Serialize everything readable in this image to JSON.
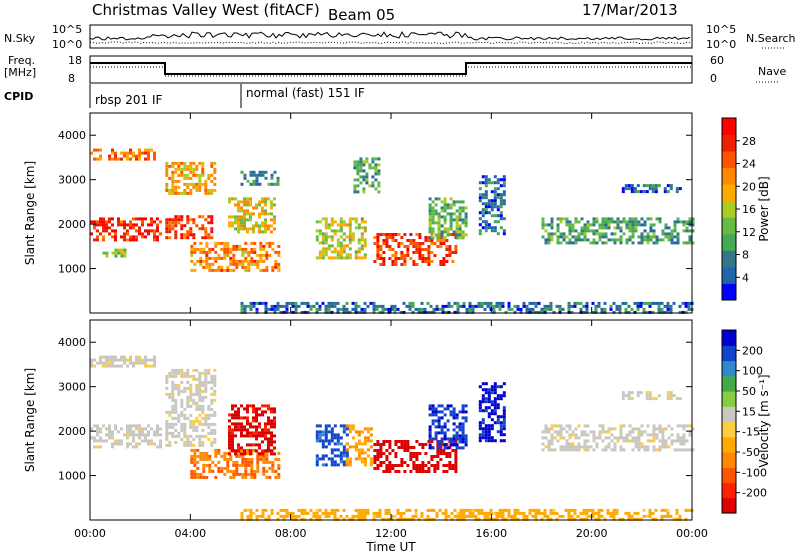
{
  "header": {
    "station": "Christmas Valley West (fitACF)",
    "beam": "Beam 05",
    "date": "17/Mar/2013"
  },
  "aux_panels": {
    "nsky_label": "N.Sky",
    "nsky_ticks": [
      "10^5",
      "10^0"
    ],
    "nsearch_label": "N.Search",
    "freq_label": [
      "Freq.",
      "[MHz]"
    ],
    "freq_ticks": [
      "18",
      "8"
    ],
    "nave_label": "Nave",
    "nave_ticks": [
      "60",
      "0"
    ],
    "cpid_label": "CPID",
    "cpid_segments": [
      {
        "label": "rbsp 201 IF",
        "start_hour": 0
      },
      {
        "label": "normal (fast) 151 IF",
        "start_hour": 6
      }
    ]
  },
  "colors": {
    "power_scale": [
      "#0000ff",
      "#2266aa",
      "#337788",
      "#44aa55",
      "#66bb44",
      "#aacc22",
      "#ffaa00",
      "#ff8800",
      "#ff5500",
      "#ee2200",
      "#ff0000"
    ],
    "velocity_scale": [
      "#0000cc",
      "#1144cc",
      "#3388cc",
      "#44aa44",
      "#88cc44",
      "#c8c8c0",
      "#ffcc44",
      "#ffaa00",
      "#ff8800",
      "#ff5500",
      "#ff2200",
      "#dd0000"
    ],
    "ground_scatter": "#c8c8c0"
  },
  "chart_data": [
    {
      "type": "heatmap",
      "name_hint": "power",
      "ylabel": "Slant Range [km]",
      "xlim": [
        0,
        24
      ],
      "ylim": [
        0,
        4500
      ],
      "y_ticks": [
        "1000",
        "2000",
        "3000",
        "4000"
      ],
      "colorbar": {
        "label": "Power [dB]",
        "range": [
          0,
          32
        ],
        "ticks": [
          "4",
          "8",
          "12",
          "16",
          "20",
          "24",
          "28"
        ]
      },
      "regions": [
        {
          "t": [
            0.0,
            2.8
          ],
          "r": [
            1650,
            2150
          ],
          "value": 28
        },
        {
          "t": [
            0.0,
            2.6
          ],
          "r": [
            3450,
            3700
          ],
          "value": 24
        },
        {
          "t": [
            0.5,
            1.5
          ],
          "r": [
            1300,
            1450
          ],
          "value": 14
        },
        {
          "t": [
            3.0,
            4.8
          ],
          "r": [
            1700,
            2200
          ],
          "value": 26
        },
        {
          "t": [
            3.0,
            5.0
          ],
          "r": [
            2700,
            3400
          ],
          "value": 20
        },
        {
          "t": [
            4.0,
            7.5
          ],
          "r": [
            950,
            1600
          ],
          "value": 22
        },
        {
          "t": [
            5.5,
            7.4
          ],
          "r": [
            1800,
            2600
          ],
          "value": 18
        },
        {
          "t": [
            6.0,
            7.5
          ],
          "r": [
            2900,
            3200
          ],
          "value": 8
        },
        {
          "t": [
            9.0,
            11.0
          ],
          "r": [
            1250,
            2150
          ],
          "value": 16
        },
        {
          "t": [
            10.5,
            11.5
          ],
          "r": [
            2700,
            3500
          ],
          "value": 10
        },
        {
          "t": [
            11.3,
            14.6
          ],
          "r": [
            1100,
            1800
          ],
          "value": 26
        },
        {
          "t": [
            13.5,
            15.0
          ],
          "r": [
            1700,
            2600
          ],
          "value": 12
        },
        {
          "t": [
            15.5,
            16.5
          ],
          "r": [
            1800,
            3100
          ],
          "value": 6
        },
        {
          "t": [
            18.0,
            24.0
          ],
          "r": [
            1600,
            2150
          ],
          "value": 10
        },
        {
          "t": [
            21.2,
            23.5
          ],
          "r": [
            2700,
            2900
          ],
          "value": 5
        },
        {
          "t": [
            6.0,
            24.0
          ],
          "r": [
            0,
            250
          ],
          "value": 6
        }
      ]
    },
    {
      "type": "heatmap",
      "name_hint": "velocity",
      "xlabel": "Time UT",
      "ylabel": "Slant Range [km]",
      "xlim": [
        0,
        24
      ],
      "ylim": [
        0,
        4500
      ],
      "x_ticks": [
        "00:00",
        "04:00",
        "08:00",
        "12:00",
        "16:00",
        "20:00",
        "00:00"
      ],
      "y_ticks": [
        "1000",
        "2000",
        "3000",
        "4000"
      ],
      "colorbar": {
        "label": "Velocity [m s⁻¹]",
        "ticks": [
          "200",
          "100",
          "50",
          "15",
          "-15",
          "-50",
          "-100",
          "-200"
        ]
      },
      "regions": [
        {
          "t": [
            0.0,
            2.8
          ],
          "r": [
            1650,
            2150
          ],
          "value": 0
        },
        {
          "t": [
            0.0,
            2.6
          ],
          "r": [
            3450,
            3700
          ],
          "value": 0
        },
        {
          "t": [
            3.0,
            5.0
          ],
          "r": [
            1700,
            3400
          ],
          "value": 0
        },
        {
          "t": [
            4.0,
            7.5
          ],
          "r": [
            950,
            1600
          ],
          "value": -120
        },
        {
          "t": [
            5.5,
            7.4
          ],
          "r": [
            1500,
            2600
          ],
          "value": -220
        },
        {
          "t": [
            9.0,
            10.3
          ],
          "r": [
            1250,
            2150
          ],
          "value": 180
        },
        {
          "t": [
            10.2,
            11.2
          ],
          "r": [
            1250,
            2150
          ],
          "value": -80
        },
        {
          "t": [
            11.3,
            14.6
          ],
          "r": [
            1100,
            1800
          ],
          "value": -230
        },
        {
          "t": [
            13.5,
            15.0
          ],
          "r": [
            1600,
            2600
          ],
          "value": 200
        },
        {
          "t": [
            15.5,
            16.5
          ],
          "r": [
            1800,
            3100
          ],
          "value": 220
        },
        {
          "t": [
            18.0,
            24.0
          ],
          "r": [
            1600,
            2150
          ],
          "value": 0
        },
        {
          "t": [
            21.2,
            23.5
          ],
          "r": [
            2700,
            2900
          ],
          "value": 0
        },
        {
          "t": [
            6.0,
            24.0
          ],
          "r": [
            0,
            250
          ],
          "value": -60
        }
      ]
    }
  ]
}
